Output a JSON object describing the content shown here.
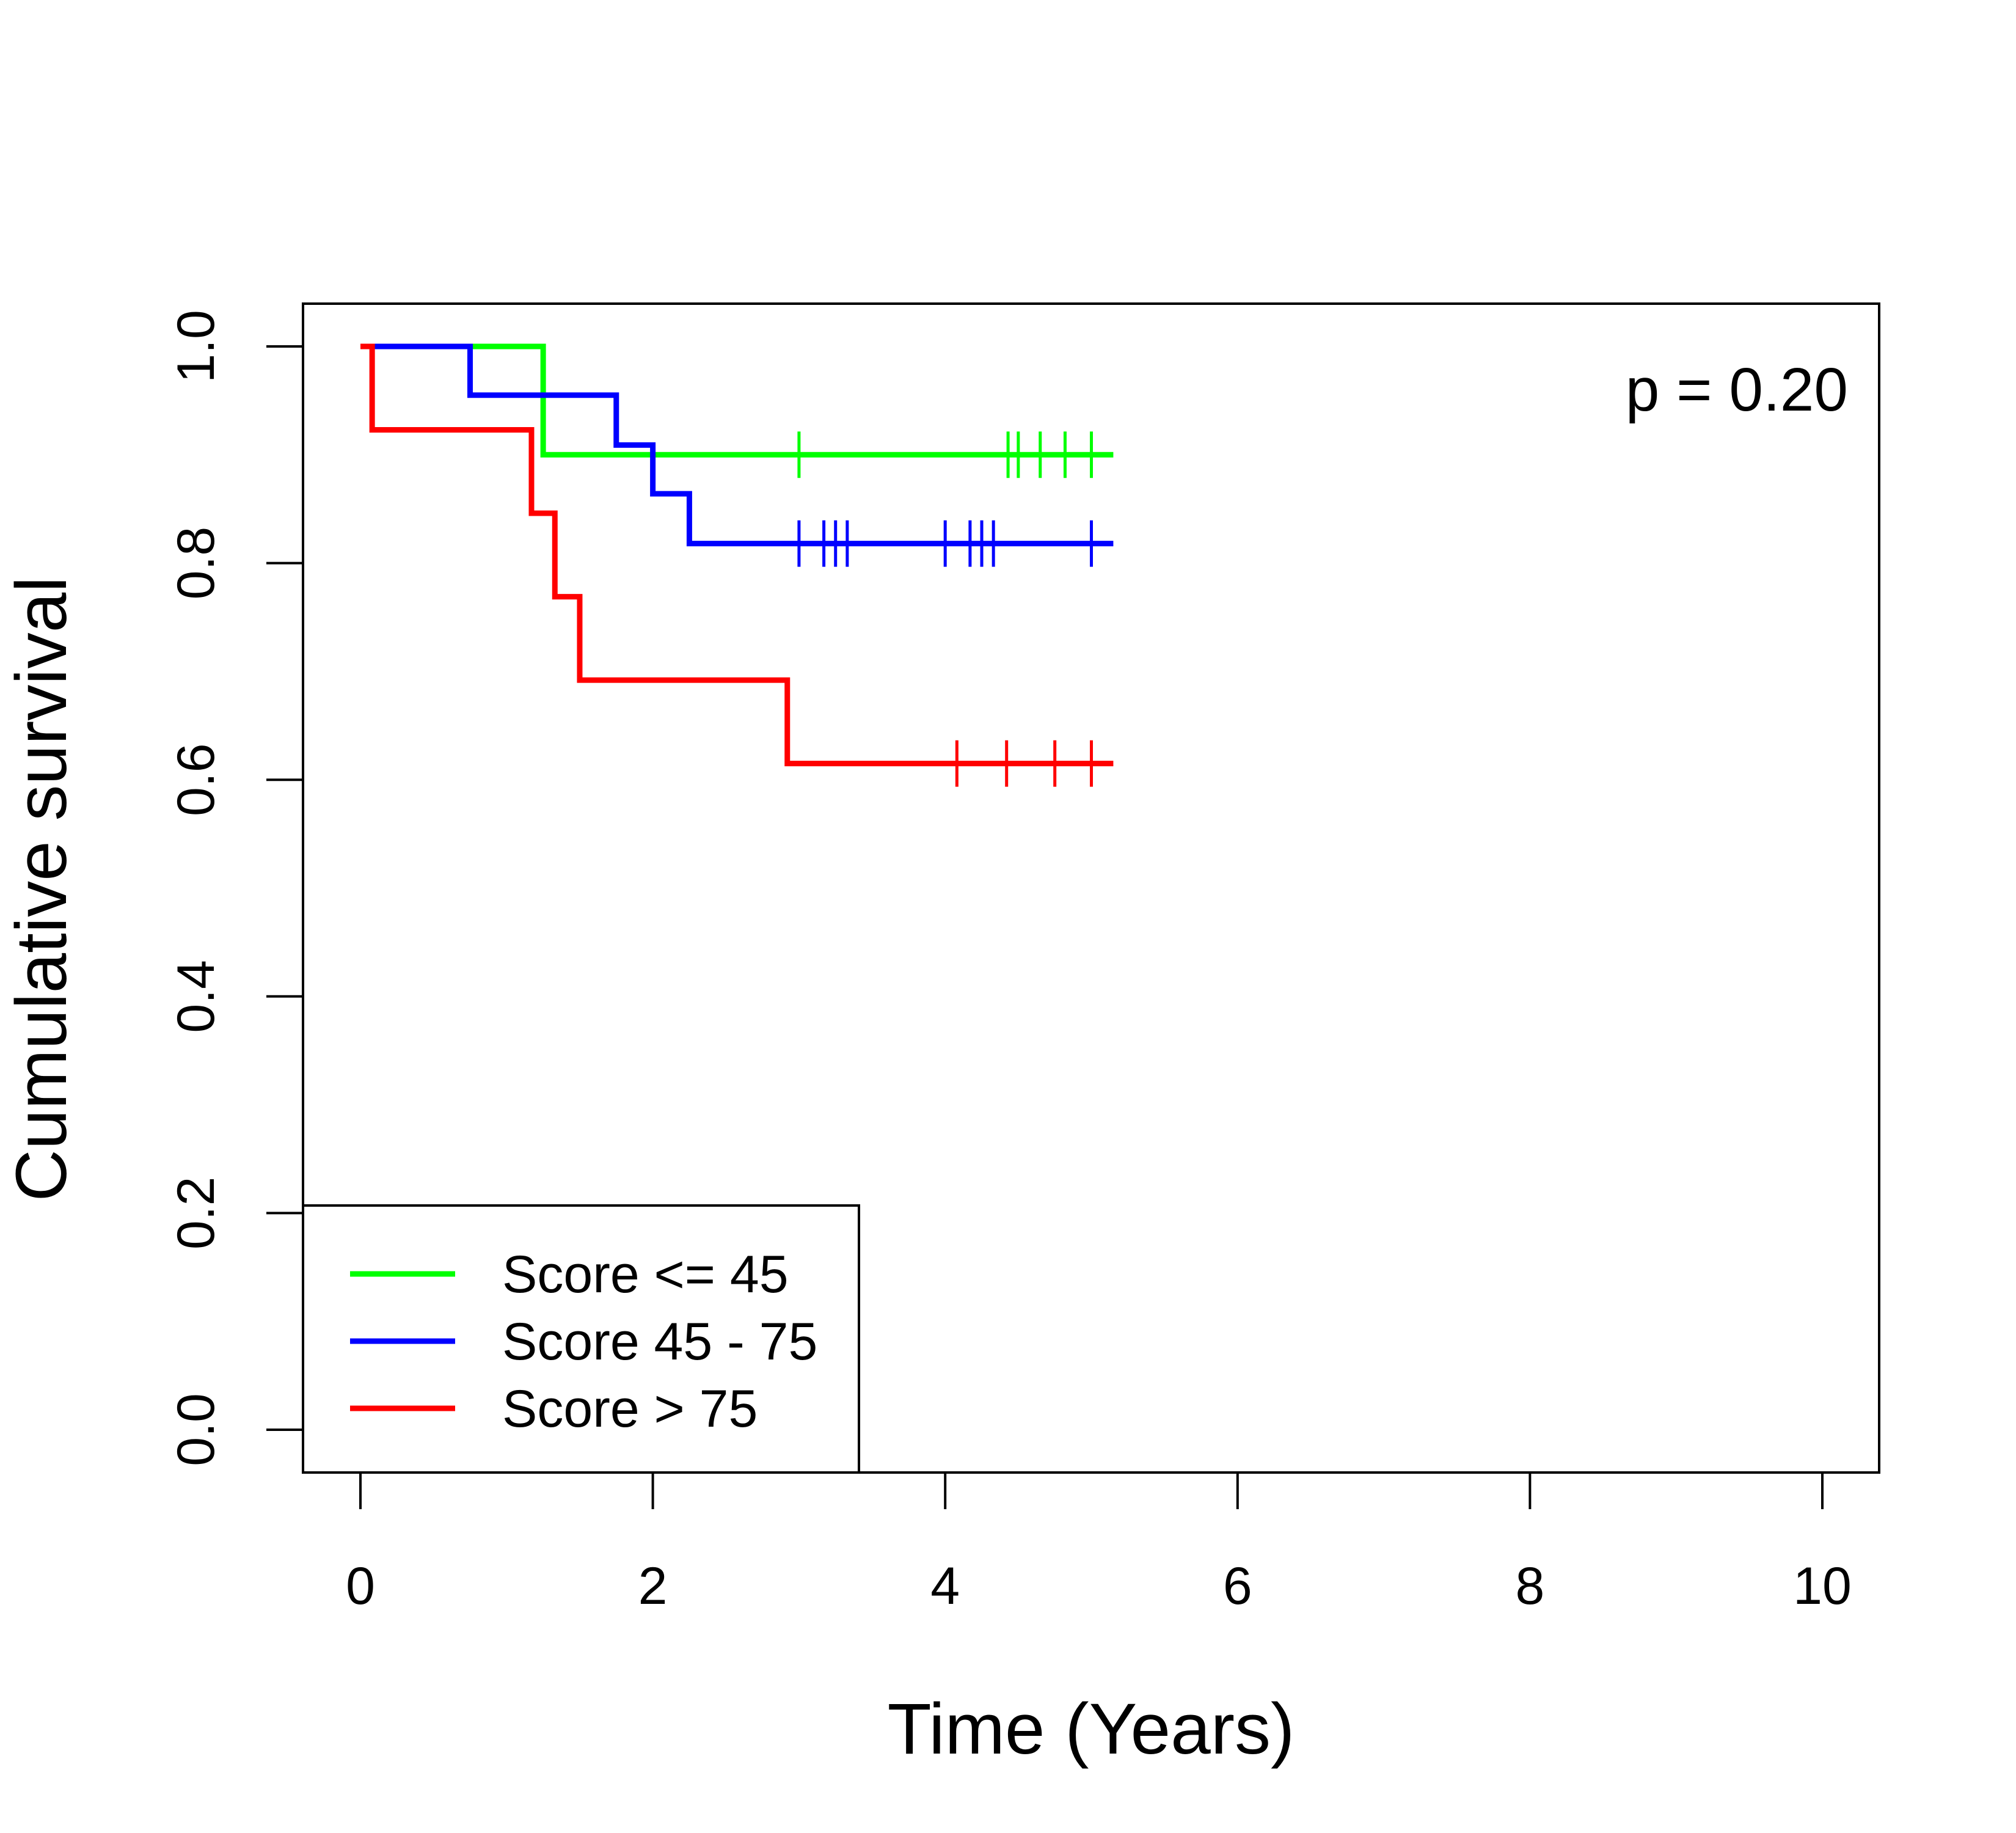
{
  "chart_data": {
    "type": "line",
    "subtype": "kaplan-meier step",
    "xlabel": "Time (Years)",
    "ylabel": "Cumulative survival",
    "xlim": [
      -0.2,
      10.4
    ],
    "ylim": [
      -0.04,
      1.04
    ],
    "xticks": [
      0,
      2,
      4,
      6,
      8,
      10
    ],
    "xtick_labels": [
      "0",
      "2",
      "4",
      "6",
      "8",
      "10"
    ],
    "yticks": [
      0.0,
      0.2,
      0.4,
      0.6,
      0.8,
      1.0
    ],
    "ytick_labels": [
      "0.0",
      "0.2",
      "0.4",
      "0.6",
      "0.8",
      "1.0"
    ],
    "grid": false,
    "annotation": "p = 0.20",
    "legend_position": "bottom-left",
    "series": [
      {
        "name": "Score <= 45",
        "color": "#00ff00",
        "steps": [
          [
            0.0,
            1.0
          ],
          [
            1.25,
            0.9
          ],
          [
            5.15,
            0.9
          ]
        ],
        "censored": [
          3.0,
          4.43,
          4.5,
          4.65,
          4.82,
          5.0
        ]
      },
      {
        "name": "Score 45 - 75",
        "color": "#0000ff",
        "steps": [
          [
            0.0,
            1.0
          ],
          [
            0.75,
            0.955
          ],
          [
            1.75,
            0.909
          ],
          [
            2.0,
            0.864
          ],
          [
            2.25,
            0.818
          ],
          [
            5.15,
            0.818
          ]
        ],
        "censored": [
          3.0,
          3.17,
          3.25,
          3.33,
          4.0,
          4.17,
          4.25,
          4.33,
          5.0
        ]
      },
      {
        "name": "Score > 75",
        "color": "#ff0000",
        "steps": [
          [
            0.0,
            1.0
          ],
          [
            0.08,
            0.923
          ],
          [
            1.17,
            0.846
          ],
          [
            1.33,
            0.769
          ],
          [
            1.5,
            0.692
          ],
          [
            2.92,
            0.615
          ],
          [
            5.15,
            0.615
          ]
        ],
        "censored": [
          4.08,
          4.42,
          4.75,
          5.0
        ]
      }
    ]
  }
}
